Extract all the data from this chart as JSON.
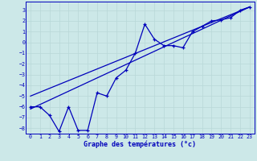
{
  "xlabel": "Graphe des températures (°c)",
  "bg_color": "#cce8e8",
  "line_color": "#0000bb",
  "grid_color": "#aacccc",
  "ylim": [
    -8.5,
    3.8
  ],
  "xlim": [
    -0.5,
    23.5
  ],
  "yticks": [
    3,
    2,
    1,
    0,
    -1,
    -2,
    -3,
    -4,
    -5,
    -6,
    -7,
    -8
  ],
  "xticks": [
    0,
    1,
    2,
    3,
    4,
    5,
    6,
    7,
    8,
    9,
    10,
    11,
    12,
    13,
    14,
    15,
    16,
    17,
    18,
    19,
    20,
    21,
    22,
    23
  ],
  "temp_x": [
    0,
    1,
    2,
    3,
    4,
    5,
    6,
    7,
    8,
    9,
    10,
    11,
    12,
    13,
    14,
    15,
    16,
    17,
    18,
    19,
    20,
    21,
    22,
    23
  ],
  "temp_y": [
    -6.0,
    -6.0,
    -6.8,
    -8.3,
    -6.0,
    -8.2,
    -8.2,
    -4.7,
    -5.0,
    -3.3,
    -2.6,
    -1.0,
    1.7,
    0.3,
    -0.3,
    -0.3,
    -0.5,
    1.0,
    1.5,
    2.0,
    2.1,
    2.3,
    3.0,
    3.3
  ],
  "line1_x": [
    0,
    23
  ],
  "line1_y": [
    -6.2,
    3.3
  ],
  "line2_x": [
    0,
    23
  ],
  "line2_y": [
    -5.0,
    3.3
  ]
}
